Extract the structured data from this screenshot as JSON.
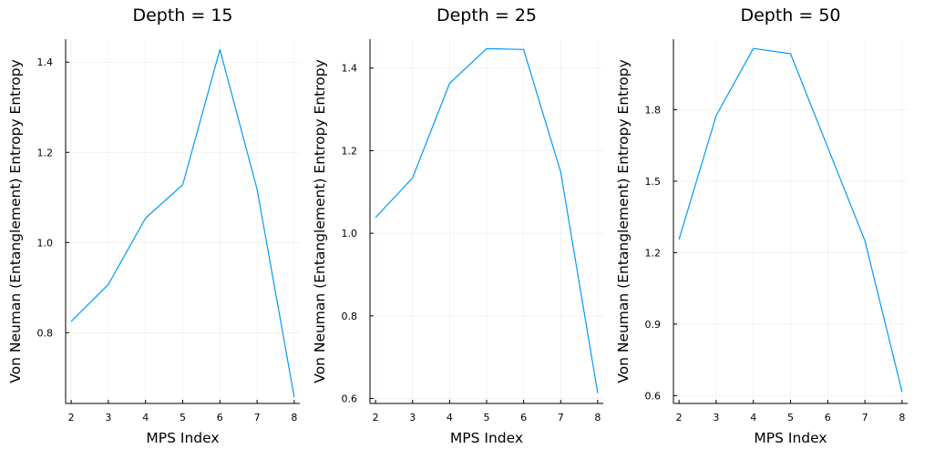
{
  "chart_data": [
    {
      "type": "line",
      "title": "Depth = 15",
      "xlabel": "MPS Index",
      "ylabel": "Von Neuman (Entanglement) Entropy Entropy",
      "x": [
        2,
        3,
        4,
        5,
        6,
        7,
        8
      ],
      "series": [
        {
          "values": [
            0.825,
            0.907,
            1.054,
            1.128,
            1.428,
            1.118,
            0.657
          ]
        }
      ],
      "xlim": [
        1.85,
        8.15
      ],
      "ylim": [
        0.643,
        1.451
      ],
      "xticks": [
        2,
        3,
        4,
        5,
        6,
        7,
        8
      ],
      "yticks": [
        0.8,
        1.0,
        1.2,
        1.4
      ],
      "ytick_labels": [
        "0.8",
        "1.0",
        "1.2",
        "1.4"
      ],
      "grid": true,
      "color": "#009af9"
    },
    {
      "type": "line",
      "title": "Depth = 25",
      "xlabel": "MPS Index",
      "ylabel": "Von Neuman (Entanglement) Entropy Entropy",
      "x": [
        2,
        3,
        4,
        5,
        6,
        7,
        8
      ],
      "series": [
        {
          "values": [
            1.038,
            1.134,
            1.363,
            1.447,
            1.445,
            1.148,
            0.613
          ]
        }
      ],
      "xlim": [
        1.85,
        8.15
      ],
      "ylim": [
        0.588,
        1.47
      ],
      "xticks": [
        2,
        3,
        4,
        5,
        6,
        7,
        8
      ],
      "yticks": [
        0.6,
        0.8,
        1.0,
        1.2,
        1.4
      ],
      "ytick_labels": [
        "0.6",
        "0.8",
        "1.0",
        "1.2",
        "1.4"
      ],
      "grid": true,
      "color": "#009af9"
    },
    {
      "type": "line",
      "title": "Depth = 50",
      "xlabel": "MPS Index",
      "ylabel": "Von Neuman (Entanglement) Entropy Entropy",
      "x": [
        2,
        3,
        4,
        5,
        6,
        7,
        8
      ],
      "series": [
        {
          "values": [
            1.255,
            1.775,
            2.057,
            2.035,
            1.642,
            1.25,
            0.615
          ]
        }
      ],
      "xlim": [
        1.85,
        8.15
      ],
      "ylim": [
        0.567,
        2.096
      ],
      "xticks": [
        2,
        3,
        4,
        5,
        6,
        7,
        8
      ],
      "yticks": [
        0.6,
        0.9,
        1.2,
        1.5,
        1.8
      ],
      "ytick_labels": [
        "0.6",
        "0.9",
        "1.2",
        "1.5",
        "1.8"
      ],
      "grid": true,
      "color": "#009af9"
    }
  ]
}
